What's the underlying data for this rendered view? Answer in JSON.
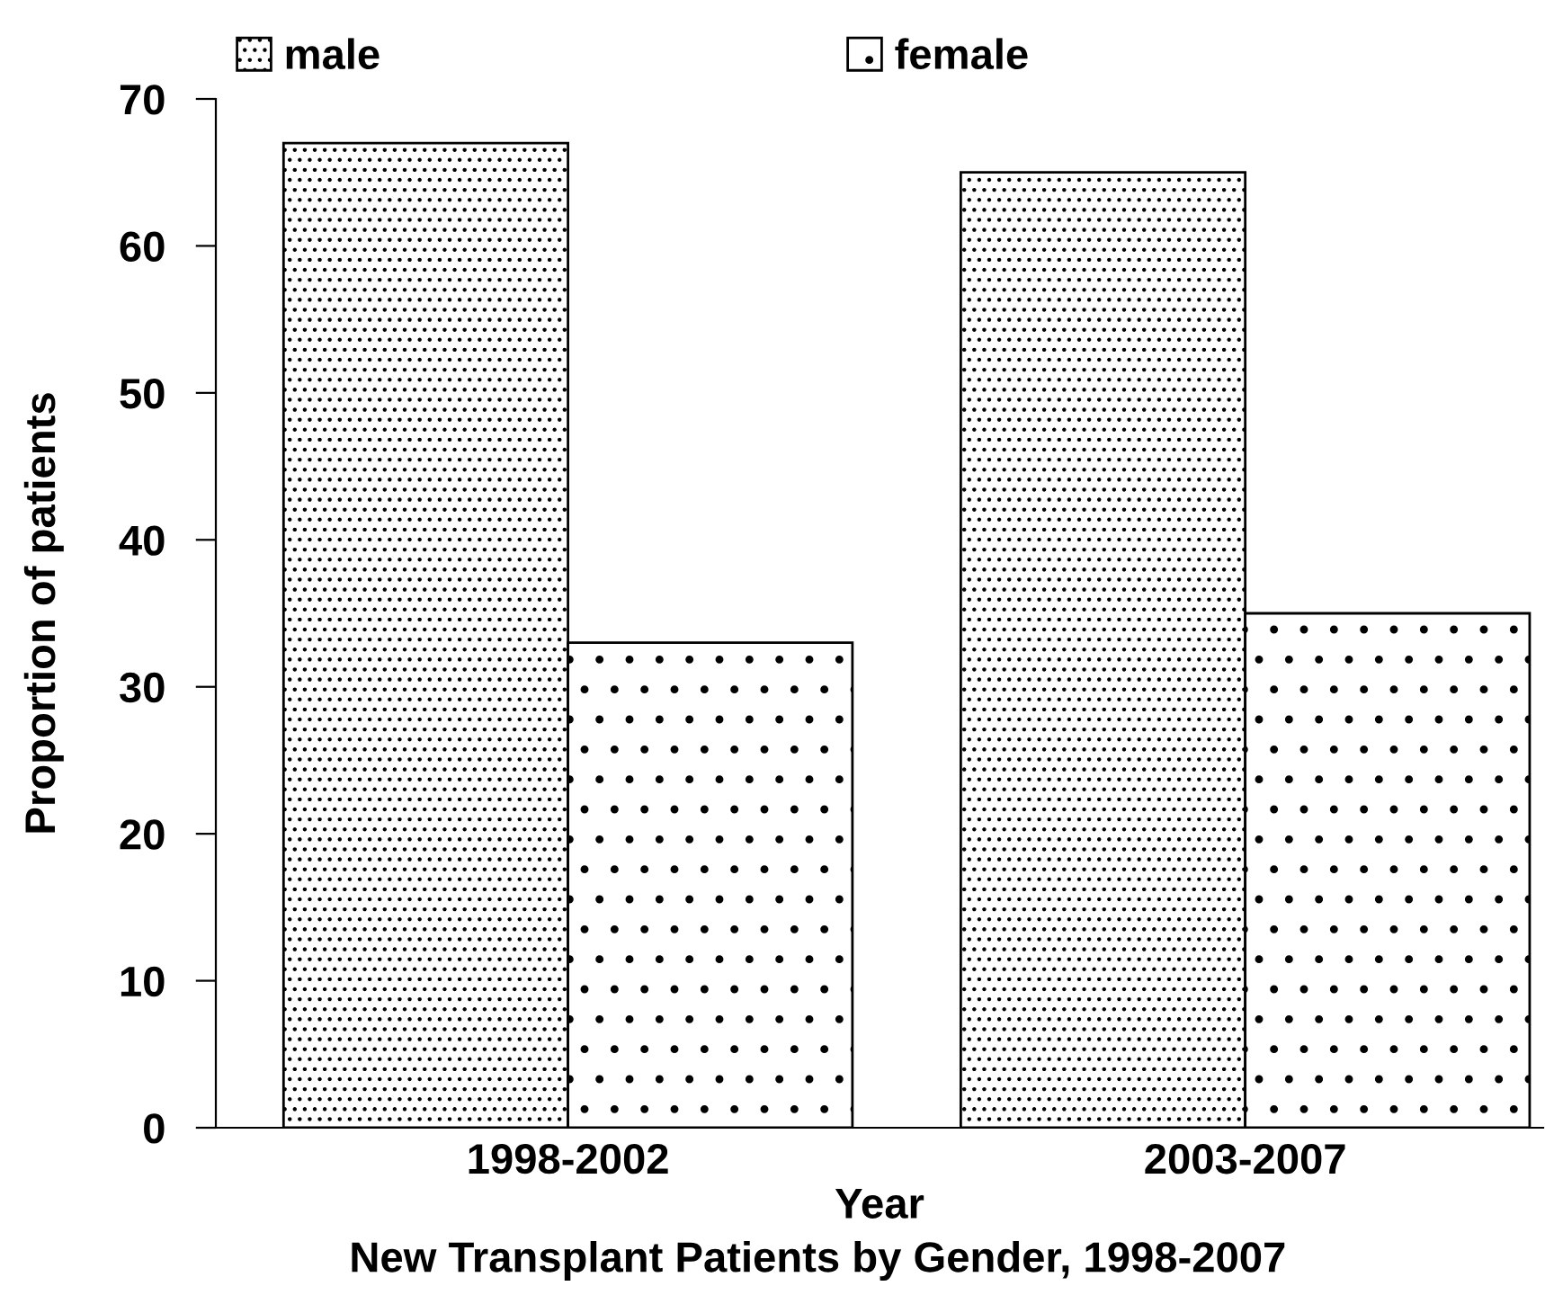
{
  "chart_data": {
    "type": "bar",
    "title": "New Transplant Patients by Gender, 1998-2007",
    "xlabel": "Year",
    "ylabel": "Proportion of patients",
    "categories": [
      "1998-2002",
      "2003-2007"
    ],
    "series": [
      {
        "name": "male",
        "color": "#000000",
        "values": [
          67,
          65
        ]
      },
      {
        "name": "female",
        "color": "#000000",
        "values": [
          33,
          35
        ]
      }
    ],
    "ylim": [
      0,
      70
    ],
    "yticks": [
      0,
      10,
      20,
      30,
      40,
      50,
      60,
      70
    ],
    "grid": false,
    "legend": "top"
  }
}
